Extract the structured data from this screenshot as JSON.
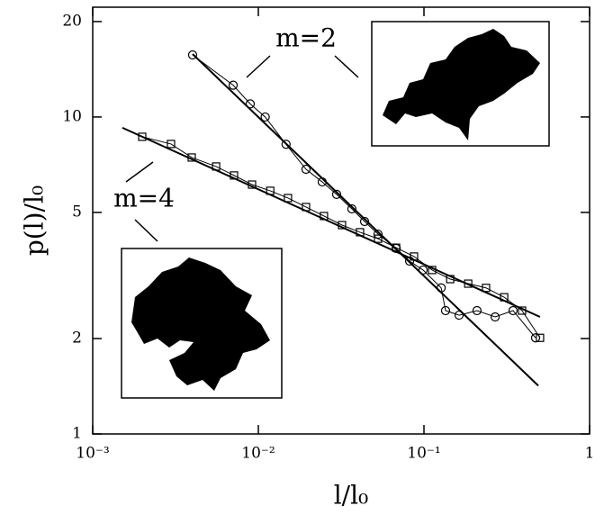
{
  "chart_data": {
    "type": "scatter",
    "xlabel": "l/l₀",
    "ylabel": "p(l)/l₀",
    "xlim": [
      0.001,
      1
    ],
    "ylim": [
      1,
      22.2
    ],
    "xscale": "log",
    "yscale": "log",
    "xticks": [
      {
        "value": 0.001,
        "label": "10⁻³"
      },
      {
        "value": 0.01,
        "label": "10⁻²"
      },
      {
        "value": 0.1,
        "label": "10⁻¹"
      },
      1
    ],
    "yticks": [
      1,
      2,
      5,
      10,
      20
    ],
    "annotations": [
      "m=2",
      "m=4"
    ],
    "series": [
      {
        "marker": "circle",
        "color": "#000",
        "x": [
          0.00401,
          0.00705,
          0.00893,
          0.011,
          0.0147,
          0.0194,
          0.0243,
          0.0297,
          0.0367,
          0.0438,
          0.0528,
          0.0679,
          0.0819,
          0.0988,
          0.127,
          0.135,
          0.163,
          0.209,
          0.269,
          0.345,
          0.472
        ],
        "values": [
          15.7,
          12.6,
          11.0,
          10.0,
          8.2,
          6.84,
          6.24,
          5.7,
          5.13,
          4.68,
          4.27,
          3.85,
          3.51,
          3.29,
          2.89,
          2.45,
          2.37,
          2.45,
          2.34,
          2.45,
          2.01
        ]
      },
      {
        "marker": "square",
        "color": "#000",
        "x": [
          0.00199,
          0.00297,
          0.00396,
          0.00556,
          0.00713,
          0.00916,
          0.0118,
          0.0151,
          0.0194,
          0.0249,
          0.032,
          0.0411,
          0.0528,
          0.0679,
          0.0871,
          0.112,
          0.144,
          0.185,
          0.237,
          0.305,
          0.391,
          0.502
        ],
        "values": [
          8.66,
          8.22,
          7.45,
          6.98,
          6.54,
          6.12,
          5.85,
          5.55,
          5.2,
          4.87,
          4.56,
          4.33,
          4.13,
          3.87,
          3.63,
          3.29,
          3.08,
          2.98,
          2.89,
          2.7,
          2.45,
          2.01
        ]
      }
    ],
    "fits": [
      {
        "x": [
          0.00401,
          0.49
        ],
        "values": [
          15.8,
          1.42
        ]
      },
      {
        "x": [
          0.00151,
          0.502
        ],
        "values": [
          9.25,
          2.34
        ]
      }
    ]
  }
}
